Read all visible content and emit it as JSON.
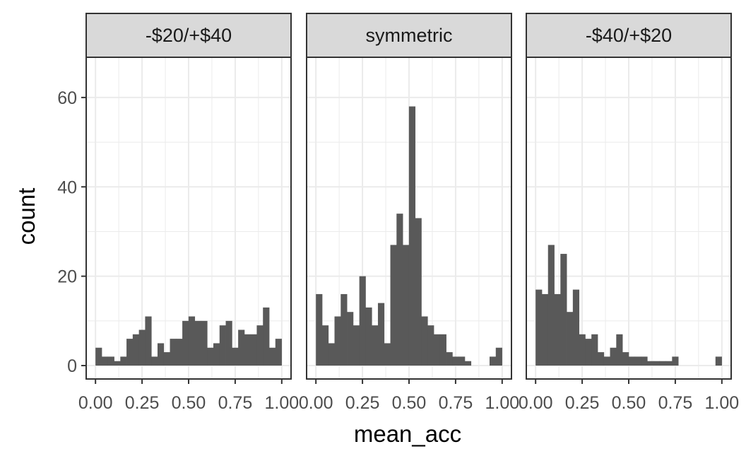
{
  "chart_data": {
    "type": "bar",
    "subtype": "faceted-histogram",
    "xlabel": "mean_acc",
    "ylabel": "count",
    "xlim": [
      -0.05,
      1.05
    ],
    "ylim": [
      -3,
      69
    ],
    "x_ticks": [
      0.0,
      0.25,
      0.5,
      0.75,
      1.0
    ],
    "x_tick_labels": [
      "0.00",
      "0.25",
      "0.50",
      "0.75",
      "1.00"
    ],
    "y_ticks": [
      0,
      20,
      40,
      60
    ],
    "y_tick_labels": [
      "0",
      "20",
      "40",
      "60"
    ],
    "bin_width": 0.0333,
    "bin_start": 0.0,
    "grid": true,
    "facets": [
      {
        "label": "-$20/+$40",
        "values": [
          4,
          2,
          2,
          1,
          2,
          6,
          7,
          8,
          11,
          2,
          5,
          3,
          6,
          6,
          10,
          11,
          10,
          10,
          4,
          5,
          9,
          10,
          4,
          8,
          7,
          7,
          9,
          13,
          4,
          6
        ]
      },
      {
        "label": "symmetric",
        "values": [
          16,
          9,
          5,
          11,
          16,
          12,
          9,
          20,
          13,
          9,
          14,
          5,
          27,
          34,
          27,
          58,
          33,
          11,
          9,
          7,
          7,
          3,
          2,
          2,
          1,
          0,
          0,
          0,
          2,
          4
        ]
      },
      {
        "label": "-$40/+$20",
        "values": [
          17,
          16,
          27,
          16,
          25,
          12,
          17,
          7,
          6,
          7,
          3,
          2,
          4,
          7,
          3,
          2,
          2,
          2,
          1,
          1,
          1,
          1,
          2,
          0,
          0,
          0,
          0,
          0,
          0,
          2
        ]
      }
    ]
  }
}
